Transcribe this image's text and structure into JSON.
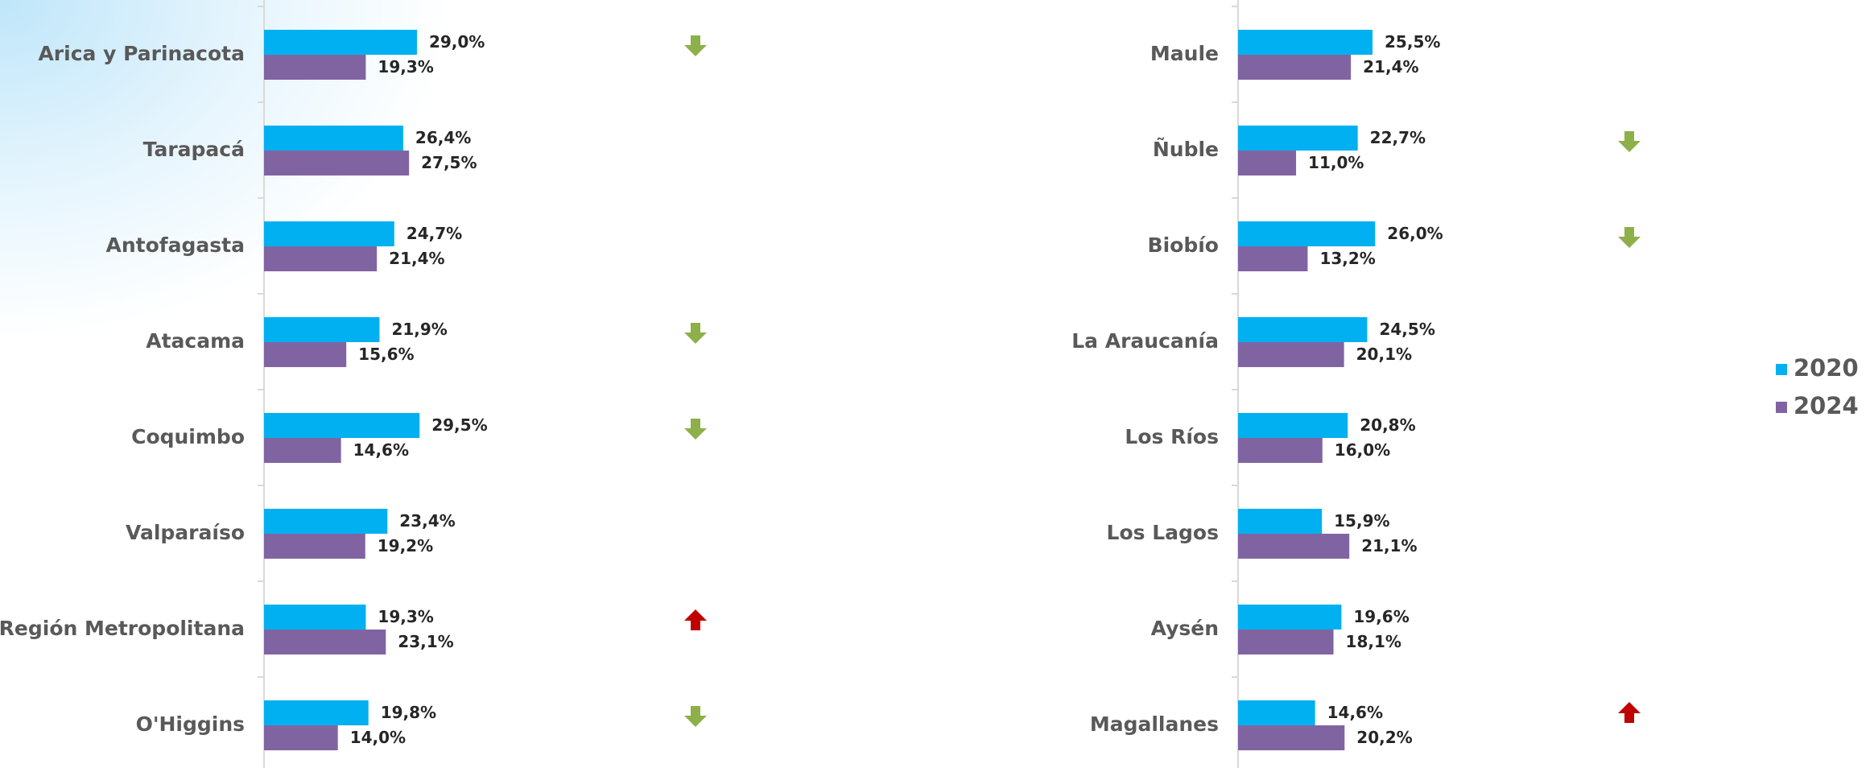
{
  "chart_data": {
    "type": "bar",
    "orientation": "horizontal",
    "legend": "right",
    "xlim": [
      0,
      100
    ],
    "categories": [
      "Arica y Parinacota",
      "Tarapacá",
      "Antofagasta",
      "Atacama",
      "Coquimbo",
      "Valparaíso",
      "Región Metropolitana",
      "O'Higgins",
      "Maule",
      "Ñuble",
      "Biobío",
      "La Araucanía",
      "Los Ríos",
      "Los Lagos",
      "Aysén",
      "Magallanes"
    ],
    "series": [
      {
        "name": "2020",
        "color": "#00b0f0",
        "values": [
          29.0,
          26.4,
          24.7,
          21.9,
          29.5,
          23.4,
          19.3,
          19.8,
          25.5,
          22.7,
          26.0,
          24.5,
          20.8,
          15.9,
          19.6,
          14.6
        ],
        "value_labels": [
          "29,0%",
          "26,4%",
          "24,7%",
          "21,9%",
          "29,5%",
          "23,4%",
          "19,3%",
          "19,8%",
          "25,5%",
          "22,7%",
          "26,0%",
          "24,5%",
          "20,8%",
          "15,9%",
          "19,6%",
          "14,6%"
        ]
      },
      {
        "name": "2024",
        "color": "#8064a2",
        "values": [
          19.3,
          27.5,
          21.4,
          15.6,
          14.6,
          19.2,
          23.1,
          14.0,
          21.4,
          11.0,
          13.2,
          20.1,
          16.0,
          21.1,
          18.1,
          20.2
        ],
        "value_labels": [
          "19,3%",
          "27,5%",
          "21,4%",
          "15,6%",
          "14,6%",
          "19,2%",
          "23,1%",
          "14,0%",
          "21,4%",
          "11,0%",
          "13,2%",
          "20,1%",
          "16,0%",
          "21,1%",
          "18,1%",
          "20,2%"
        ]
      }
    ]
  }
}
